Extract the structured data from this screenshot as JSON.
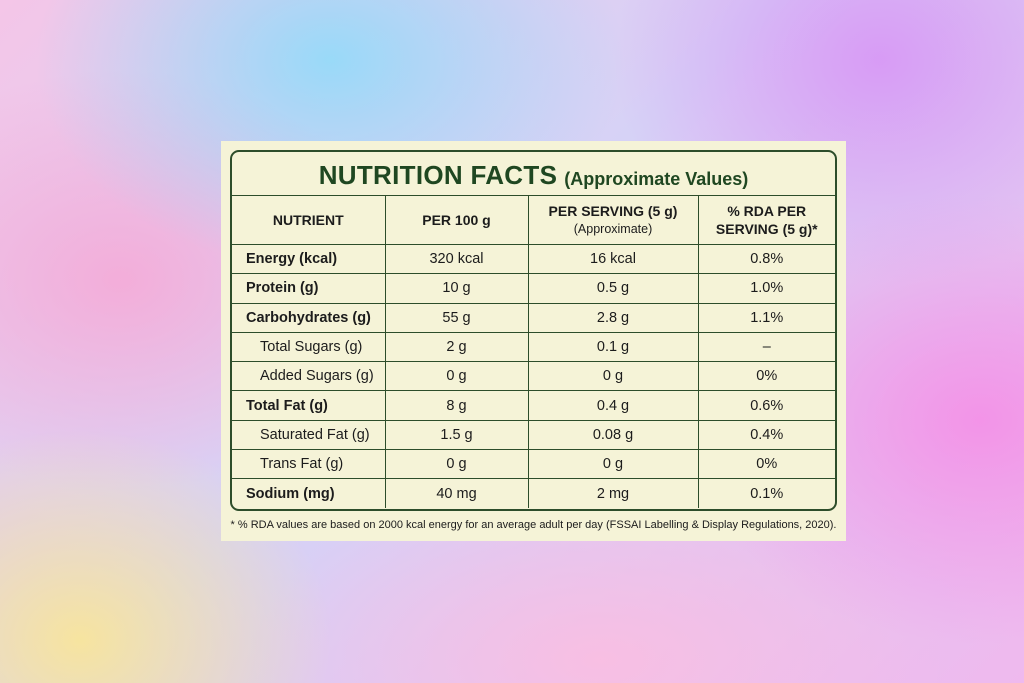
{
  "title": {
    "main": "NUTRITION FACTS",
    "sub": "(Approximate Values)"
  },
  "headers": {
    "nutrient": "NUTRIENT",
    "per100": "PER 100 g",
    "serving": "PER SERVING (5 g)",
    "serving_note": "(Approximate)",
    "rda_line1": "% RDA PER",
    "rda_line2": "SERVING (5 g)*"
  },
  "rows": [
    {
      "name": "Energy (kcal)",
      "per100": "320 kcal",
      "serving": "16 kcal",
      "rda": "0.8%",
      "bold": true
    },
    {
      "name": "Protein (g)",
      "per100": "10 g",
      "serving": "0.5 g",
      "rda": "1.0%",
      "bold": true
    },
    {
      "name": "Carbohydrates (g)",
      "per100": "55 g",
      "serving": "2.8 g",
      "rda": "1.1%",
      "bold": true
    },
    {
      "name": "Total Sugars (g)",
      "per100": "2 g",
      "serving": "0.1 g",
      "rda": "–",
      "bold": false
    },
    {
      "name": "Added Sugars (g)",
      "per100": "0 g",
      "serving": "0 g",
      "rda": "0%",
      "bold": false
    },
    {
      "name": "Total Fat (g)",
      "per100": "8 g",
      "serving": "0.4 g",
      "rda": "0.6%",
      "bold": true
    },
    {
      "name": "Saturated Fat (g)",
      "per100": "1.5 g",
      "serving": "0.08 g",
      "rda": "0.4%",
      "bold": false
    },
    {
      "name": "Trans Fat (g)",
      "per100": "0 g",
      "serving": "0 g",
      "rda": "0%",
      "bold": false
    },
    {
      "name": "Sodium (mg)",
      "per100": "40 mg",
      "serving": "2 mg",
      "rda": "0.1%",
      "bold": true
    }
  ],
  "footnote": "* % RDA values are based on 2000 kcal energy for an average adult per day (FSSAI Labelling & Display Regulations, 2020).",
  "colors": {
    "border": "#2d4d2a",
    "title": "#1f4721",
    "card": "#f5f3d7"
  }
}
